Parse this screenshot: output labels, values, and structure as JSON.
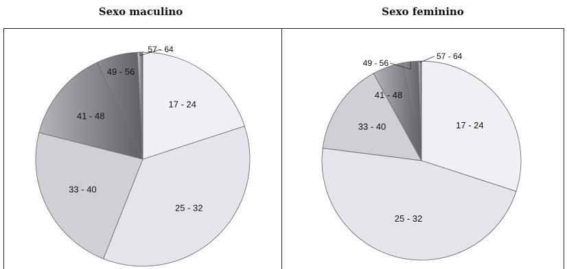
{
  "chart_data": [
    {
      "type": "pie",
      "title": "Sexo maculino",
      "categories": [
        "17 - 24",
        "25 - 32",
        "33 - 40",
        "41 - 48",
        "49 - 56",
        "57 - 64"
      ],
      "values": [
        20.0,
        36.0,
        23.0,
        14.0,
        6.2,
        0.8
      ],
      "colors": [
        "#eef0f3",
        "#e4e5ea",
        "#cfd0d5",
        "#b4b5b9",
        "#8a8b90",
        "#d8d8dc"
      ]
    },
    {
      "type": "pie",
      "title": "Sexo feminino",
      "categories": [
        "17 - 24",
        "25 - 32",
        "33 - 40",
        "41 - 48",
        "49 - 56",
        "57 - 64"
      ],
      "values": [
        30.0,
        47.0,
        15.0,
        5.0,
        2.5,
        0.5
      ],
      "colors": [
        "#eef0f3",
        "#e4e5ea",
        "#cfd0d5",
        "#b4b5b9",
        "#8a8b90",
        "#d8d8dc"
      ]
    }
  ]
}
